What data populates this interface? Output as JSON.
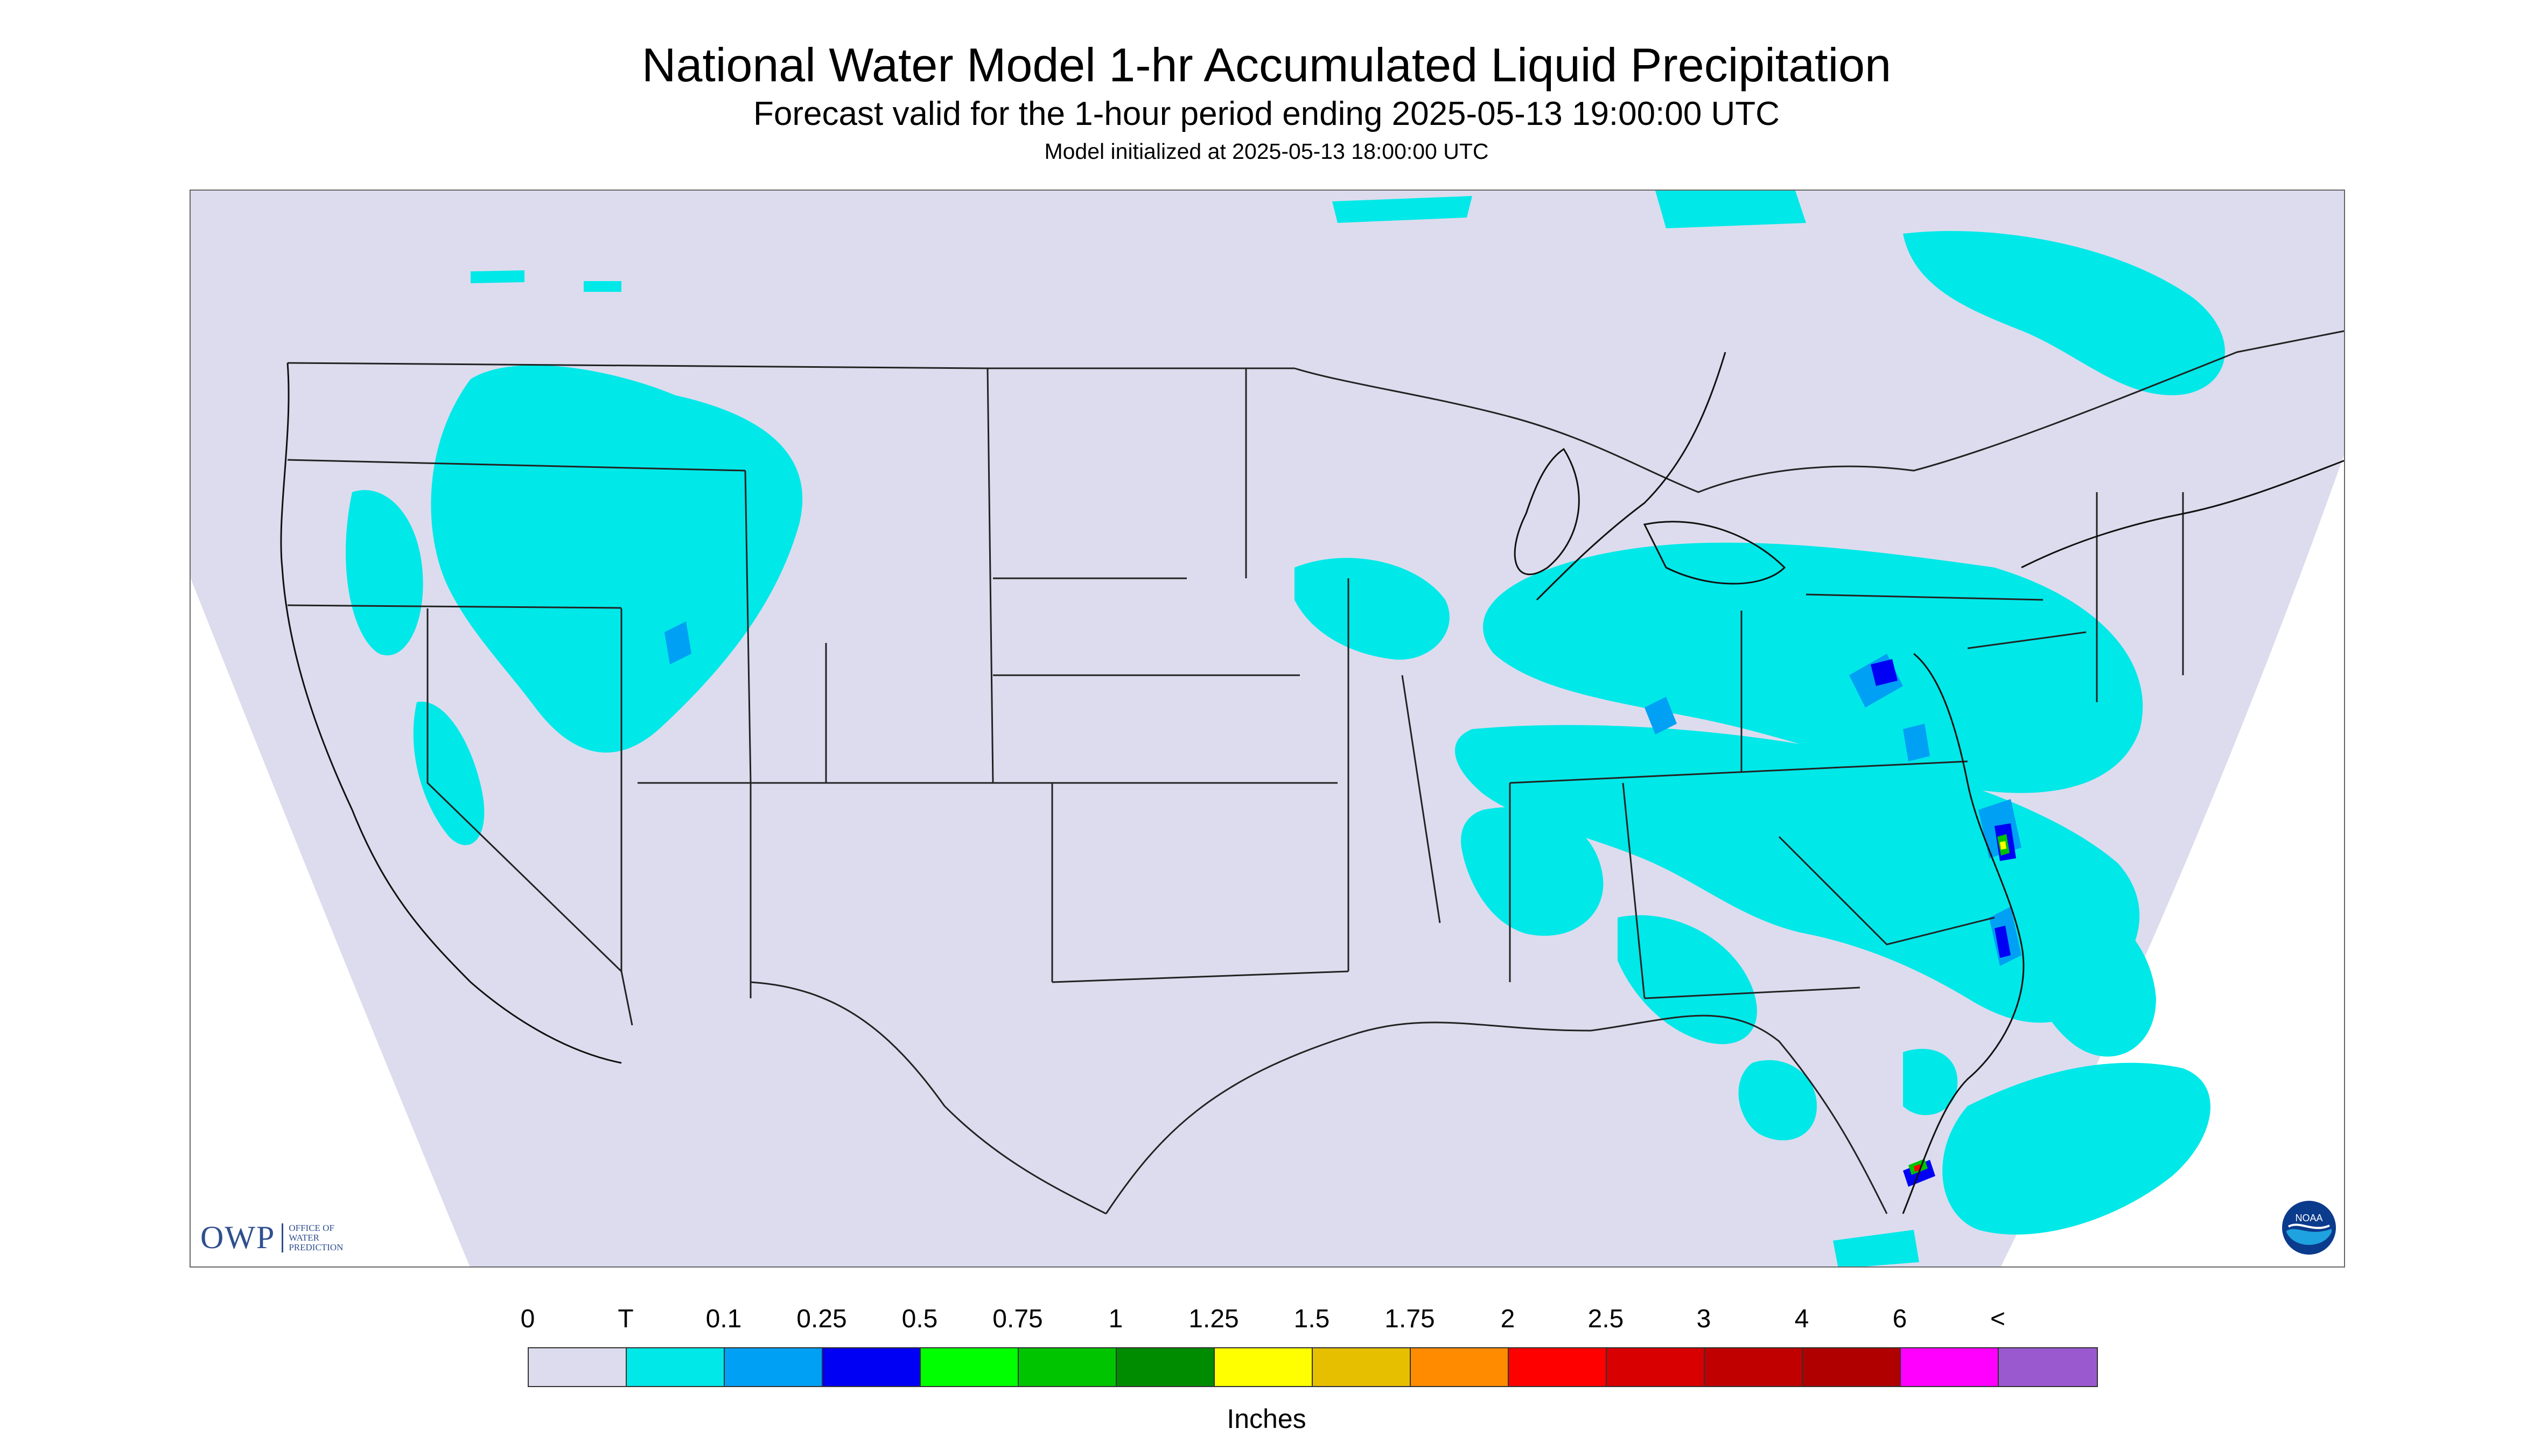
{
  "header": {
    "title": "National Water Model 1-hr Accumulated Liquid Precipitation",
    "subtitle": "Forecast valid for the 1-hour period ending 2025-05-13 19:00:00 UTC",
    "init": "Model initialized at 2025-05-13 18:00:00 UTC"
  },
  "logos": {
    "owp_big": "OWP",
    "owp_line1": "Office of",
    "owp_line2": "Water",
    "owp_line3": "Prediction",
    "noaa": "NOAA"
  },
  "legend": {
    "labels": [
      "0",
      "T",
      "0.1",
      "0.25",
      "0.5",
      "0.75",
      "1",
      "1.25",
      "1.5",
      "1.75",
      "2",
      "2.5",
      "3",
      "4",
      "6",
      "<"
    ],
    "colors": [
      "#dcdcee",
      "#00e8e8",
      "#00a0f4",
      "#0000f4",
      "#00ff00",
      "#00c400",
      "#008c00",
      "#ffff00",
      "#e6c000",
      "#ff8c00",
      "#ff0000",
      "#d80000",
      "#c00000",
      "#b00000",
      "#ff00ff",
      "#9b59d0"
    ],
    "units": "Inches"
  },
  "colors": {
    "background": "#dcdcee",
    "precip_trace": "#00e8e8",
    "precip_light": "#00a0f4",
    "precip_mod": "#0000f4",
    "precip_heavy": "#00c400",
    "precip_extreme": "#ff0000"
  }
}
